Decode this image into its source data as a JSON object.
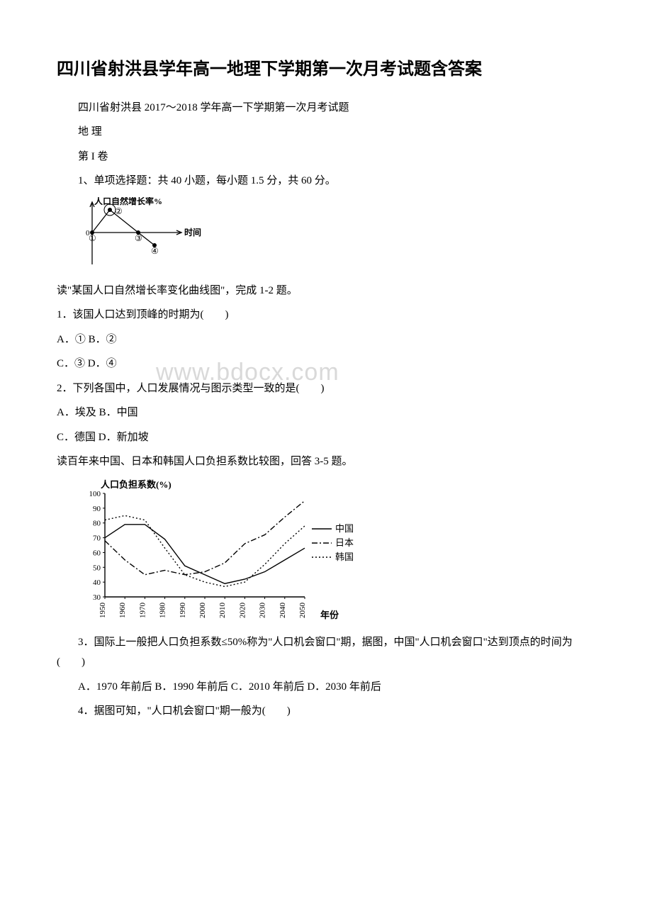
{
  "title": "四川省射洪县学年高一地理下学期第一次月考试题含答案",
  "subtitle": "四川省射洪县 2017～2018 学年高一下学期第一次月考试题",
  "subject": "地 理",
  "section": "第 I 卷",
  "instructions": "1、单项选择题：共 40 小题，每小题 1.5 分，共 60 分。",
  "chart1": {
    "ylabel": "人口自然增长率%",
    "xlabel": "时间",
    "points_label": [
      "①",
      "②",
      "③",
      "④"
    ],
    "line_color": "#000000",
    "background": "#ffffff",
    "line_width": 1.3,
    "marker_size": 3,
    "points": [
      {
        "x": 20,
        "y": 50
      },
      {
        "x": 45,
        "y": 18
      },
      {
        "x": 85,
        "y": 50
      },
      {
        "x": 108,
        "y": 68
      }
    ],
    "axis_zero_y": 50
  },
  "q_intro1": "读\"某国人口自然增长率变化曲线图\"，完成 1-2 题。",
  "q1": "1．该国人口达到顶峰的时期为(　　)",
  "q1a": "A．① B．②",
  "q1b": "C．③ D．④",
  "q2": "2．下列各国中，人口发展情况与图示类型一致的是(　　)",
  "q2a": "A．埃及 B．中国",
  "q2b": "C．德国 D．新加坡",
  "q_intro2": "读百年来中国、日本和韩国人口负担系数比较图，回答 3-5 题。",
  "chart2": {
    "ylabel": "人口负担系数(%)",
    "xlabel": "年份",
    "ylim": [
      30,
      100
    ],
    "ytick_step": 10,
    "yticks": [
      30,
      40,
      50,
      60,
      70,
      80,
      90,
      100
    ],
    "xticks": [
      "1950",
      "1960",
      "1970",
      "1980",
      "1990",
      "2000",
      "2010",
      "2020",
      "2030",
      "2040",
      "2050"
    ],
    "legend": [
      {
        "label": "中国",
        "style": "solid"
      },
      {
        "label": "日本",
        "style": "dashdot"
      },
      {
        "label": "韩国",
        "style": "dotted"
      }
    ],
    "line_color": "#000000",
    "grid_color": "#999999",
    "background": "#ffffff",
    "line_width": 1.4,
    "series": {
      "china": [
        70,
        79,
        79,
        69,
        51,
        45,
        39,
        42,
        47,
        55,
        63
      ],
      "japan": [
        68,
        55,
        45,
        48,
        45,
        47,
        53,
        66,
        72,
        84,
        95
      ],
      "korea": [
        82,
        85,
        82,
        63,
        45,
        40,
        37,
        40,
        52,
        66,
        78
      ]
    }
  },
  "q3": "3．国际上一般把人口负担系数≤50%称为\"人口机会窗口\"期，据图，中国\"人口机会窗口\"达到顶点的时间为(　　)",
  "q3a": "A．1970 年前后 B．1990 年前后 C．2010 年前后 D．2030 年前后",
  "q4": "4．据图可知，\"人口机会窗口\"期一般为(　　)",
  "watermark": "www.bdocx.com"
}
